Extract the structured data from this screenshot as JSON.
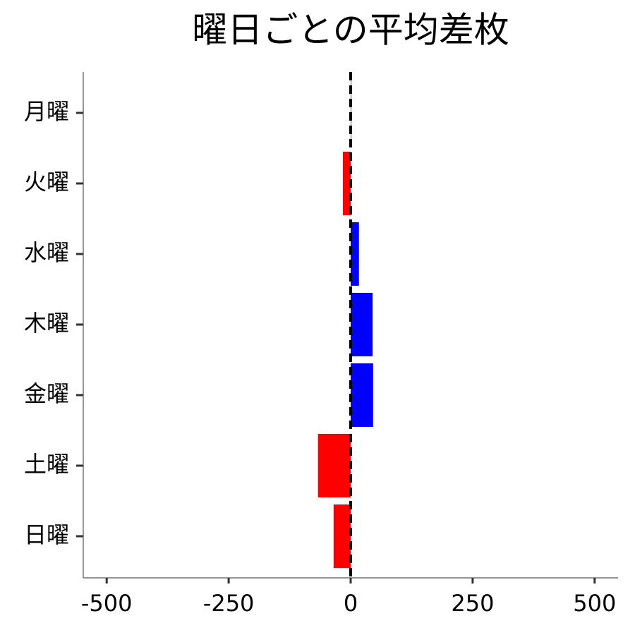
{
  "chart_data": {
    "type": "barh",
    "title": "曜日ごとの平均差枚",
    "categories": [
      "月曜",
      "火曜",
      "水曜",
      "木曜",
      "金曜",
      "土曜",
      "日曜"
    ],
    "values": [
      1,
      -16,
      17,
      45,
      46,
      -67,
      -35
    ],
    "colors": [
      "#0000ff",
      "#ff0000",
      "#0000ff",
      "#0000ff",
      "#0000ff",
      "#ff0000",
      "#ff0000"
    ],
    "xlim": [
      -548,
      548
    ],
    "xticks": [
      -500,
      -250,
      0,
      250,
      500
    ],
    "reference_line": 0
  }
}
